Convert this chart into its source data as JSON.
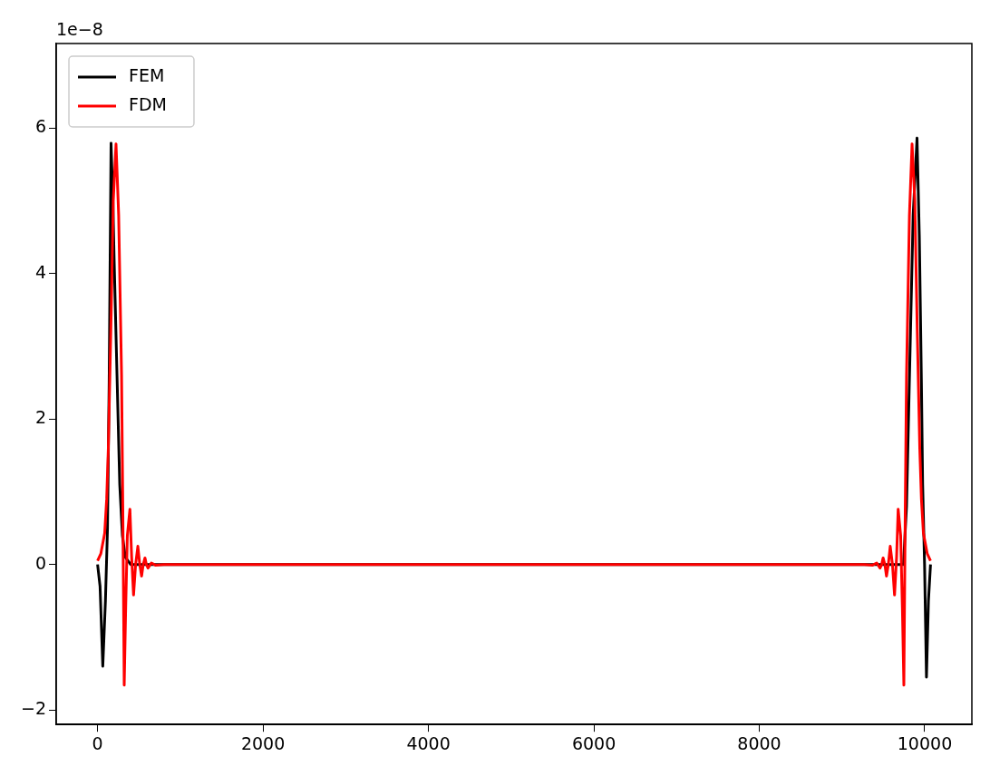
{
  "chart_data": {
    "type": "line",
    "annotations": [
      "1e−8"
    ],
    "xlim": [
      -500,
      10570
    ],
    "xticks": [
      0,
      2000,
      4000,
      6000,
      8000,
      10000
    ],
    "ylim": [
      -2.2,
      7.16
    ],
    "yticks": [
      {
        "value": -2,
        "label": "−2"
      },
      0,
      2,
      4,
      6
    ],
    "grid": false,
    "legend": "top left",
    "marker": "none",
    "line_style": "solid",
    "series": [
      {
        "name": "FEM",
        "color": "#000000",
        "x": [
          0,
          30,
          63,
          95,
          120,
          140,
          163,
          185,
          200,
          235,
          268,
          300,
          335,
          400,
          9670,
          9743,
          9780,
          9816,
          9860,
          9907,
          9935,
          9960,
          9975,
          9998,
          10021,
          10045,
          10070
        ],
        "values": [
          0,
          -0.3,
          -1.4,
          -0.5,
          0.5,
          2.5,
          5.79,
          5.0,
          4.2,
          2.6,
          1.1,
          0.4,
          0.1,
          0,
          0,
          0,
          0.8,
          2.6,
          4.8,
          5.86,
          4.5,
          2.5,
          1.1,
          0,
          -1.55,
          -0.5,
          0
        ]
      },
      {
        "name": "FDM",
        "color": "#ff0000",
        "x": [
          0,
          40,
          86,
          110,
          130,
          160,
          190,
          223,
          255,
          290,
          305,
          322,
          340,
          360,
          391,
          412,
          435,
          460,
          487,
          510,
          532,
          552,
          573,
          590,
          610,
          650,
          700,
          800,
          9270,
          9370,
          9420,
          9460,
          9480,
          9497,
          9518,
          9538,
          9560,
          9583,
          9610,
          9635,
          9660,
          9679,
          9709,
          9730,
          9748,
          9765,
          9780,
          9815,
          9847,
          9880,
          9910,
          9940,
          9960,
          9984,
          10030,
          10070
        ],
        "values": [
          0.05,
          0.15,
          0.43,
          0.9,
          1.6,
          3.2,
          5.0,
          5.78,
          4.8,
          2.6,
          0.8,
          -1.66,
          -0.6,
          0.4,
          0.76,
          0.1,
          -0.42,
          0,
          0.25,
          0,
          -0.16,
          0,
          0.09,
          0,
          -0.05,
          0.02,
          -0.01,
          0,
          0,
          -0.01,
          0.02,
          -0.05,
          0,
          0.09,
          0,
          -0.16,
          0,
          0.25,
          0,
          -0.42,
          0.1,
          0.76,
          0.4,
          -0.6,
          -1.66,
          0.8,
          2.6,
          4.8,
          5.78,
          5.0,
          3.2,
          1.6,
          0.9,
          0.43,
          0.15,
          0.05
        ]
      }
    ]
  }
}
